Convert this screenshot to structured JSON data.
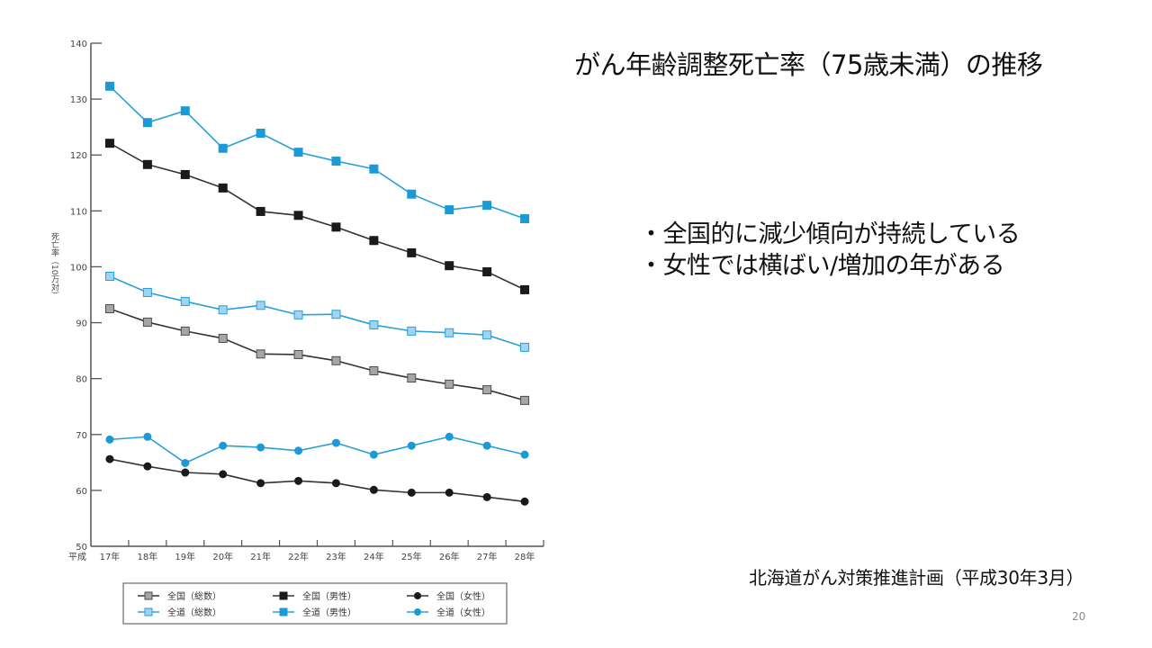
{
  "slide": {
    "title": "がん年齢調整死亡率（75歳未満）の推移",
    "bullets": [
      "・全国的に減少傾向が持続している",
      "・女性では横ばい/増加の年がある"
    ],
    "source": "北海道がん対策推進計画（平成30年3月）",
    "page_number": "20"
  },
  "chart_data": {
    "type": "line",
    "title": "",
    "xlabel": "",
    "ylabel": "死亡率（10万対）",
    "x_prefix": "平成",
    "categories": [
      "17年",
      "18年",
      "19年",
      "20年",
      "21年",
      "22年",
      "23年",
      "24年",
      "25年",
      "26年",
      "27年",
      "28年"
    ],
    "ylim": [
      50,
      140
    ],
    "yticks": [
      50,
      60,
      70,
      80,
      90,
      100,
      110,
      120,
      130,
      140
    ],
    "grid": false,
    "legend_position": "bottom",
    "series": [
      {
        "name": "全国（総数）",
        "marker": "square",
        "line_color": "#333333",
        "fill": "#a6a6a6",
        "stroke": "#4d4d4d",
        "values": [
          92.5,
          90.1,
          88.5,
          87.2,
          84.4,
          84.3,
          83.2,
          81.4,
          80.1,
          79.0,
          78.0,
          76.1
        ]
      },
      {
        "name": "全国（男性）",
        "marker": "square",
        "line_color": "#333333",
        "fill": "#1a1a1a",
        "stroke": "#1a1a1a",
        "values": [
          122.1,
          118.3,
          116.5,
          114.1,
          109.9,
          109.2,
          107.1,
          104.7,
          102.5,
          100.2,
          99.1,
          95.9
        ]
      },
      {
        "name": "全国（女性）",
        "marker": "circle",
        "line_color": "#333333",
        "fill": "#1a1a1a",
        "stroke": "#1a1a1a",
        "values": [
          65.6,
          64.3,
          63.2,
          62.9,
          61.3,
          61.7,
          61.3,
          60.1,
          59.6,
          59.6,
          58.8,
          58.0
        ]
      },
      {
        "name": "全道（総数）",
        "marker": "square",
        "line_color": "#2a9fd6",
        "fill": "#9fd4f2",
        "stroke": "#2a9fd6",
        "values": [
          98.3,
          95.4,
          93.8,
          92.3,
          93.1,
          91.4,
          91.5,
          89.6,
          88.5,
          88.2,
          87.8,
          85.6
        ]
      },
      {
        "name": "全道（男性）",
        "marker": "square",
        "line_color": "#2a9fd6",
        "fill": "#1b9ad6",
        "stroke": "#1b9ad6",
        "values": [
          132.3,
          125.8,
          127.9,
          121.2,
          123.9,
          120.5,
          118.9,
          117.5,
          113.0,
          110.2,
          111.0,
          108.6
        ]
      },
      {
        "name": "全道（女性）",
        "marker": "circle",
        "line_color": "#2a9fd6",
        "fill": "#1b9ad6",
        "stroke": "#1b9ad6",
        "values": [
          69.1,
          69.6,
          64.9,
          68.0,
          67.7,
          67.1,
          68.5,
          66.4,
          68.0,
          69.6,
          68.0,
          66.4
        ]
      }
    ]
  }
}
